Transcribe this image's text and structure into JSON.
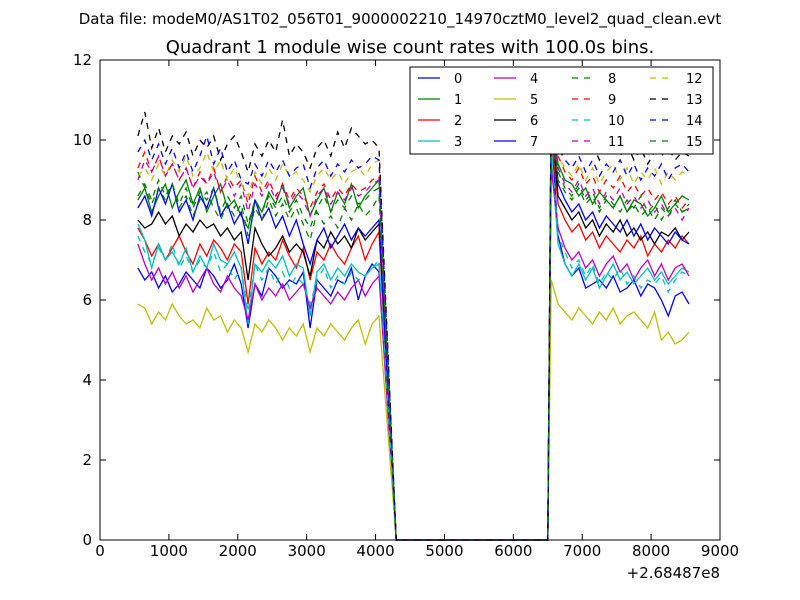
{
  "chart_data": {
    "type": "line",
    "suptitle": "Data file: modeM0/AS1T02_056T01_9000002210_14970cztM0_level2_quad_clean.evt",
    "title": "Quadrant 1 module wise count rates with 100.0s bins.",
    "xlabel": "",
    "ylabel": "",
    "x_offset_label": "+2.68487e8",
    "xlim": [
      0,
      9000
    ],
    "ylim": [
      0,
      12
    ],
    "x_ticks": [
      0,
      1000,
      2000,
      3000,
      4000,
      5000,
      6000,
      7000,
      8000,
      9000
    ],
    "y_ticks": [
      0,
      2,
      4,
      6,
      8,
      10,
      12
    ],
    "grid": false,
    "legend_position": "top-right",
    "gap": {
      "start": 4300,
      "end": 6500
    },
    "series": [
      {
        "name": "0",
        "color": "#0000ff",
        "dash": "solid",
        "pre": [
          6.8,
          6.5,
          6.7,
          6.3,
          6.6,
          6.2,
          6.4,
          6.7,
          6.5,
          6.3,
          6.8,
          6.6,
          6.3,
          6.5,
          6.9,
          6.4,
          5.3,
          6.4,
          6.1,
          6.8,
          6.6,
          6.3,
          6.5,
          6.4,
          6.7,
          5.3,
          6.5,
          6.3,
          6.1,
          6.5,
          6.4,
          6.8,
          6.0,
          6.6,
          6.9,
          6.7
        ],
        "post": [
          10.3,
          7.6,
          6.9,
          6.6,
          6.8,
          6.3,
          6.4,
          6.5,
          6.3,
          6.6,
          6.2,
          6.3,
          6.5,
          6.1,
          6.4,
          6.3,
          6.0,
          5.6,
          6.1,
          6.2,
          5.9
        ]
      },
      {
        "name": "1",
        "color": "#008000",
        "dash": "solid",
        "pre": [
          8.5,
          8.8,
          8.2,
          8.6,
          8.9,
          8.3,
          8.7,
          9.0,
          8.4,
          8.8,
          8.2,
          8.6,
          8.9,
          8.3,
          8.5,
          8.1,
          7.8,
          8.5,
          8.2,
          8.7,
          8.4,
          8.9,
          8.3,
          8.6,
          8.8,
          8.1,
          8.5,
          8.8,
          8.2,
          8.7,
          8.4,
          8.9,
          8.3,
          8.6,
          8.8,
          9.0
        ],
        "post": [
          10.6,
          9.4,
          9.0,
          8.9,
          8.6,
          8.8,
          8.4,
          8.7,
          8.5,
          8.3,
          8.6,
          8.2,
          8.5,
          8.4,
          8.1,
          8.3,
          8.6,
          8.2,
          8.4,
          8.6,
          8.5
        ]
      },
      {
        "name": "2",
        "color": "#ff0000",
        "dash": "solid",
        "pre": [
          7.8,
          7.5,
          7.1,
          7.4,
          7.0,
          7.3,
          7.6,
          7.2,
          6.9,
          7.4,
          7.1,
          7.5,
          7.3,
          7.0,
          7.4,
          7.2,
          5.9,
          7.3,
          6.9,
          7.2,
          7.0,
          7.5,
          7.1,
          6.8,
          7.3,
          6.5,
          7.2,
          7.0,
          7.4,
          7.1,
          6.9,
          7.3,
          7.6,
          7.0,
          7.4,
          7.7
        ],
        "post": [
          10.1,
          8.4,
          8.0,
          7.7,
          7.9,
          7.5,
          7.7,
          7.3,
          7.6,
          7.4,
          7.2,
          7.5,
          7.3,
          7.6,
          7.1,
          7.4,
          7.2,
          7.5,
          7.3,
          7.6,
          7.4
        ]
      },
      {
        "name": "3",
        "color": "#00bfbf",
        "dash": "solid",
        "pre": [
          7.9,
          7.5,
          6.8,
          7.4,
          7.0,
          7.2,
          6.9,
          7.3,
          6.7,
          7.1,
          6.8,
          7.4,
          7.0,
          6.9,
          7.2,
          6.8,
          5.4,
          6.9,
          6.7,
          7.0,
          6.8,
          7.1,
          6.6,
          6.9,
          6.8,
          5.6,
          6.7,
          6.9,
          6.5,
          6.8,
          6.6,
          6.9,
          6.7,
          6.6,
          6.8,
          6.9
        ],
        "post": [
          9.6,
          7.4,
          6.9,
          6.6,
          6.9,
          6.5,
          6.8,
          6.3,
          6.6,
          6.9,
          6.5,
          6.7,
          6.4,
          6.6,
          6.8,
          6.5,
          6.7,
          6.4,
          6.6,
          6.8,
          6.7
        ]
      },
      {
        "name": "4",
        "color": "#bf00bf",
        "dash": "solid",
        "pre": [
          7.4,
          6.9,
          6.5,
          6.8,
          6.4,
          6.7,
          6.3,
          6.6,
          6.2,
          6.5,
          6.8,
          6.4,
          6.2,
          6.6,
          6.3,
          6.1,
          5.5,
          6.4,
          6.0,
          6.3,
          6.1,
          6.4,
          6.0,
          6.2,
          6.4,
          5.8,
          6.3,
          6.1,
          5.9,
          6.2,
          6.0,
          6.3,
          6.5,
          6.1,
          6.4,
          6.6
        ],
        "post": [
          9.3,
          7.8,
          7.3,
          7.0,
          7.2,
          6.8,
          7.0,
          6.6,
          6.9,
          7.1,
          6.7,
          6.9,
          6.5,
          6.8,
          7.0,
          6.6,
          6.9,
          6.5,
          6.8,
          6.9,
          6.6
        ]
      },
      {
        "name": "5",
        "color": "#bfbf00",
        "dash": "solid",
        "pre": [
          5.9,
          5.8,
          5.4,
          5.7,
          5.5,
          5.9,
          5.6,
          5.4,
          5.5,
          5.3,
          5.8,
          5.5,
          5.6,
          5.2,
          5.5,
          5.3,
          4.7,
          5.4,
          5.2,
          5.5,
          5.3,
          5.0,
          5.3,
          5.1,
          5.4,
          4.7,
          5.3,
          5.1,
          5.4,
          5.2,
          5.0,
          5.3,
          5.5,
          4.9,
          5.4,
          5.6
        ],
        "post": [
          6.5,
          5.9,
          5.7,
          5.5,
          5.8,
          5.6,
          5.4,
          5.7,
          5.5,
          5.8,
          5.4,
          5.6,
          5.7,
          5.5,
          5.3,
          5.7,
          5.0,
          5.2,
          4.9,
          5.0,
          5.2
        ]
      },
      {
        "name": "6",
        "color": "#000000",
        "dash": "solid",
        "pre": [
          8.0,
          7.8,
          7.9,
          8.2,
          7.9,
          8.1,
          7.6,
          7.9,
          7.7,
          8.0,
          7.8,
          7.9,
          7.6,
          7.8,
          7.5,
          7.7,
          6.5,
          7.8,
          7.4,
          7.1,
          7.3,
          7.6,
          7.2,
          7.4,
          7.2,
          6.6,
          7.5,
          7.3,
          7.7,
          7.4,
          7.6,
          7.3,
          7.8,
          7.5,
          7.7,
          7.9
        ],
        "post": [
          10.6,
          8.6,
          8.3,
          8.0,
          8.2,
          7.8,
          8.0,
          7.6,
          7.9,
          7.7,
          8.0,
          7.6,
          7.8,
          7.5,
          7.7,
          7.4,
          7.7,
          7.6,
          7.8,
          7.5,
          7.7
        ]
      },
      {
        "name": "7",
        "color": "#0000ff",
        "dash": "solid",
        "pre": [
          8.3,
          8.6,
          8.1,
          8.8,
          8.4,
          8.9,
          8.2,
          8.5,
          8.0,
          8.6,
          8.3,
          8.8,
          8.1,
          8.4,
          7.9,
          8.2,
          7.4,
          8.5,
          8.0,
          8.3,
          7.8,
          8.1,
          7.6,
          8.0,
          7.4,
          6.9,
          7.5,
          7.8,
          7.3,
          7.6,
          7.9,
          7.5,
          7.8,
          7.6,
          7.8,
          8.0
        ],
        "post": [
          11.2,
          8.9,
          8.5,
          8.2,
          8.4,
          8.0,
          8.2,
          7.8,
          8.1,
          7.9,
          7.7,
          8.0,
          7.6,
          7.9,
          7.5,
          7.8,
          7.6,
          7.4,
          7.7,
          7.5,
          7.4
        ]
      },
      {
        "name": "8",
        "color": "#008000",
        "dash": "dashed",
        "pre": [
          9.2,
          8.8,
          8.4,
          8.8,
          8.5,
          8.9,
          8.3,
          8.6,
          8.1,
          8.5,
          8.7,
          8.3,
          8.0,
          8.4,
          8.1,
          8.4,
          7.6,
          8.3,
          8.0,
          8.5,
          8.1,
          8.4,
          8.0,
          8.3,
          7.9,
          7.5,
          8.2,
          7.9,
          8.1,
          7.8,
          8.3,
          8.0,
          8.4,
          8.1,
          8.3,
          8.6
        ],
        "post": [
          10.4,
          9.2,
          8.8,
          8.6,
          8.9,
          8.5,
          8.7,
          8.3,
          8.6,
          8.4,
          8.2,
          8.5,
          8.3,
          8.6,
          8.2,
          8.4,
          8.0,
          8.3,
          8.5,
          8.2,
          8.4
        ]
      },
      {
        "name": "9",
        "color": "#ff0000",
        "dash": "dashed",
        "pre": [
          9.3,
          9.7,
          9.2,
          9.6,
          9.1,
          9.4,
          9.0,
          9.3,
          8.8,
          9.2,
          8.9,
          9.3,
          8.7,
          9.1,
          8.8,
          9.0,
          8.4,
          9.1,
          8.7,
          9.0,
          8.6,
          8.9,
          8.5,
          8.8,
          8.6,
          8.3,
          8.7,
          8.9,
          8.5,
          8.8,
          8.6,
          8.9,
          8.7,
          8.8,
          9.0,
          9.1
        ],
        "post": [
          10.8,
          9.6,
          9.2,
          9.0,
          9.3,
          8.9,
          9.1,
          8.7,
          9.0,
          8.8,
          9.1,
          8.7,
          8.9,
          8.6,
          8.8,
          8.5,
          8.7,
          8.4,
          8.6,
          8.3,
          8.5
        ]
      },
      {
        "name": "10",
        "color": "#00bfbf",
        "dash": "dashed",
        "pre": [
          7.6,
          7.2,
          6.9,
          7.3,
          7.0,
          7.4,
          6.8,
          7.1,
          6.7,
          7.0,
          6.8,
          7.2,
          6.7,
          6.9,
          6.5,
          6.8,
          5.7,
          6.9,
          6.5,
          6.8,
          6.4,
          6.7,
          6.3,
          6.6,
          6.4,
          5.9,
          6.5,
          6.8,
          6.3,
          6.6,
          6.4,
          6.7,
          6.5,
          6.6,
          6.8,
          7.0
        ],
        "post": [
          9.9,
          7.6,
          7.2,
          6.8,
          7.0,
          6.6,
          6.9,
          6.4,
          6.7,
          6.5,
          6.8,
          6.4,
          6.6,
          6.3,
          6.5,
          6.4,
          6.6,
          6.2,
          6.5,
          6.7,
          6.6
        ]
      },
      {
        "name": "11",
        "color": "#bf00bf",
        "dash": "dashed",
        "pre": [
          9.0,
          9.5,
          9.2,
          9.6,
          9.1,
          9.4,
          9.0,
          9.3,
          8.8,
          9.1,
          8.9,
          9.2,
          8.7,
          9.0,
          8.6,
          8.9,
          8.2,
          8.9,
          8.6,
          8.9,
          8.5,
          8.8,
          8.4,
          8.7,
          8.5,
          8.1,
          8.6,
          8.8,
          8.4,
          8.7,
          8.5,
          8.8,
          8.6,
          8.7,
          8.9,
          9.0
        ],
        "post": [
          10.2,
          9.3,
          8.9,
          8.7,
          9.0,
          8.6,
          8.8,
          8.4,
          8.7,
          8.5,
          8.8,
          8.4,
          8.6,
          8.3,
          8.5,
          8.2,
          8.4,
          8.1,
          8.3,
          8.0,
          8.3
        ]
      },
      {
        "name": "12",
        "color": "#bfbf00",
        "dash": "dashed",
        "pre": [
          9.1,
          9.3,
          9.0,
          9.4,
          9.1,
          9.5,
          9.2,
          9.6,
          9.1,
          9.3,
          9.7,
          9.2,
          9.5,
          9.0,
          9.3,
          8.9,
          8.6,
          9.2,
          8.9,
          9.3,
          9.0,
          9.4,
          9.1,
          9.2,
          9.0,
          8.7,
          9.1,
          9.3,
          9.0,
          9.2,
          8.9,
          9.2,
          9.3,
          9.1,
          9.4,
          9.5
        ],
        "post": [
          10.6,
          9.6,
          9.3,
          9.1,
          9.4,
          9.0,
          9.3,
          8.9,
          9.2,
          9.4,
          9.0,
          9.3,
          8.9,
          9.2,
          9.0,
          9.3,
          8.9,
          9.2,
          9.0,
          9.2,
          9.1
        ]
      },
      {
        "name": "13",
        "color": "#000000",
        "dash": "dashed",
        "pre": [
          10.1,
          10.7,
          9.8,
          10.3,
          9.7,
          10.1,
          9.9,
          10.2,
          9.6,
          10.0,
          9.8,
          10.1,
          9.5,
          9.9,
          10.1,
          9.7,
          9.2,
          9.9,
          9.6,
          10.0,
          9.7,
          10.5,
          9.6,
          9.9,
          9.7,
          9.3,
          9.8,
          10.0,
          9.6,
          10.2,
          9.8,
          10.3,
          10.1,
          9.9,
          10.0,
          9.8
        ],
        "post": [
          11.1,
          10.2,
          9.9,
          9.7,
          10.0,
          9.6,
          9.9,
          9.5,
          9.8,
          10.0,
          9.6,
          9.9,
          9.5,
          9.8,
          9.4,
          9.7,
          9.6,
          9.8,
          9.5,
          9.7,
          9.6
        ]
      },
      {
        "name": "14",
        "color": "#0000ff",
        "dash": "dashed",
        "pre": [
          9.7,
          10.0,
          9.5,
          9.9,
          9.4,
          9.8,
          9.3,
          9.7,
          9.2,
          9.6,
          10.1,
          9.4,
          9.8,
          9.2,
          9.5,
          9.0,
          8.9,
          9.4,
          9.1,
          9.5,
          9.2,
          9.5,
          9.1,
          9.3,
          9.4,
          8.8,
          9.3,
          9.5,
          9.1,
          9.4,
          9.2,
          9.5,
          9.3,
          9.4,
          9.6,
          9.5
        ],
        "post": [
          10.9,
          9.8,
          9.5,
          9.3,
          9.6,
          9.2,
          9.5,
          9.1,
          9.4,
          9.2,
          9.5,
          9.1,
          9.4,
          9.0,
          9.3,
          9.1,
          9.4,
          9.0,
          9.3,
          9.4,
          9.2
        ]
      },
      {
        "name": "15",
        "color": "#008000",
        "dash": "dashed",
        "pre": [
          8.6,
          8.9,
          8.5,
          9.0,
          8.6,
          8.9,
          8.4,
          8.8,
          8.3,
          8.7,
          8.5,
          8.8,
          8.2,
          8.6,
          8.3,
          8.6,
          7.9,
          8.5,
          8.2,
          8.6,
          8.3,
          8.6,
          8.2,
          8.5,
          8.1,
          7.8,
          8.3,
          8.6,
          8.2,
          8.5,
          8.3,
          8.6,
          8.4,
          8.5,
          8.7,
          8.8
        ],
        "post": [
          10.3,
          9.0,
          8.7,
          8.5,
          8.8,
          8.4,
          8.6,
          8.2,
          8.5,
          8.3,
          8.6,
          8.2,
          8.4,
          8.1,
          8.3,
          8.0,
          8.3,
          8.1,
          8.4,
          8.2,
          8.3
        ]
      }
    ]
  }
}
